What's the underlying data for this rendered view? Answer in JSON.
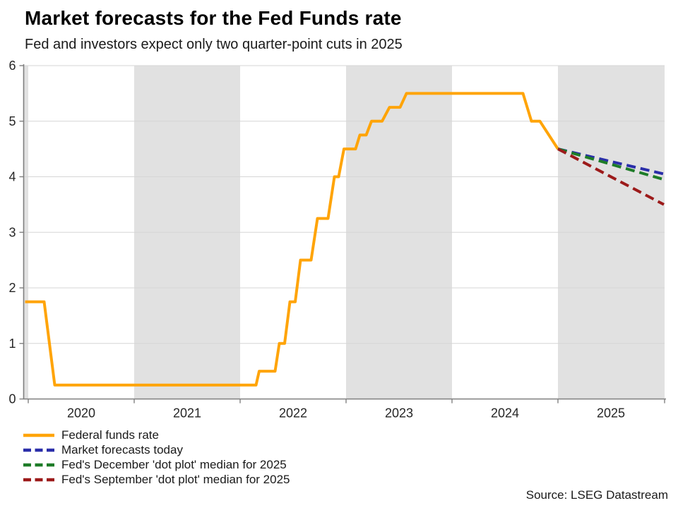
{
  "header": {
    "title": "Market forecasts for the Fed Funds rate",
    "subtitle": "Fed and investors expect only two quarter-point cuts in 2025"
  },
  "source": "Source: LSEG Datastream",
  "colors": {
    "band": "#e1e1e1",
    "grid": "#d6d6d6",
    "axis": "#7f7f7f",
    "tick_label": "#262626",
    "orange": "#ffa408",
    "navy": "#2a2ea9",
    "green": "#1e7c28",
    "darkred": "#9c1a1a"
  },
  "chart_data": {
    "type": "line",
    "title": "Market forecasts for the Fed Funds rate",
    "subtitle": "Fed and investors expect only two quarter-point cuts in 2025",
    "xlabel": "",
    "ylabel": "",
    "ylim": [
      0,
      6
    ],
    "x_range_years": [
      2019.953,
      2026.007
    ],
    "y_ticks": [
      0,
      1,
      2,
      3,
      4,
      5,
      6
    ],
    "x_ticks": [
      2020,
      2021,
      2022,
      2023,
      2024,
      2025
    ],
    "grid": "horizontal",
    "legend_position": "bottom-left",
    "shaded_bands": [
      [
        2019.953,
        2020
      ],
      [
        2021,
        2022
      ],
      [
        2023,
        2024
      ],
      [
        2025,
        2026.007
      ]
    ],
    "series": [
      {
        "name": "Federal funds rate",
        "color_key": "orange",
        "style": "solid",
        "points": [
          [
            2019.97,
            1.75
          ],
          [
            2020.15,
            1.75
          ],
          [
            2020.25,
            0.25
          ],
          [
            2022.15,
            0.25
          ],
          [
            2022.18,
            0.5
          ],
          [
            2022.33,
            0.5
          ],
          [
            2022.37,
            1.0
          ],
          [
            2022.42,
            1.0
          ],
          [
            2022.47,
            1.75
          ],
          [
            2022.52,
            1.75
          ],
          [
            2022.57,
            2.5
          ],
          [
            2022.67,
            2.5
          ],
          [
            2022.73,
            3.25
          ],
          [
            2022.83,
            3.25
          ],
          [
            2022.89,
            4.0
          ],
          [
            2022.93,
            4.0
          ],
          [
            2022.98,
            4.5
          ],
          [
            2023.09,
            4.5
          ],
          [
            2023.13,
            4.75
          ],
          [
            2023.19,
            4.75
          ],
          [
            2023.24,
            5.0
          ],
          [
            2023.34,
            5.0
          ],
          [
            2023.41,
            5.25
          ],
          [
            2023.51,
            5.25
          ],
          [
            2023.57,
            5.5
          ],
          [
            2024.67,
            5.5
          ],
          [
            2024.75,
            5.0
          ],
          [
            2024.83,
            5.0
          ],
          [
            2025.0,
            4.5
          ]
        ]
      },
      {
        "name": "Market forecasts today",
        "color_key": "navy",
        "style": "dashed",
        "points": [
          [
            2025.0,
            4.5
          ],
          [
            2026.0,
            4.05
          ]
        ]
      },
      {
        "name": "Fed's December 'dot plot' median for 2025",
        "color_key": "green",
        "style": "dashed",
        "points": [
          [
            2025.0,
            4.5
          ],
          [
            2026.0,
            3.95
          ]
        ]
      },
      {
        "name": "Fed's September 'dot plot' median for 2025",
        "color_key": "darkred",
        "style": "dashed",
        "points": [
          [
            2025.0,
            4.5
          ],
          [
            2026.0,
            3.5
          ]
        ]
      }
    ]
  }
}
